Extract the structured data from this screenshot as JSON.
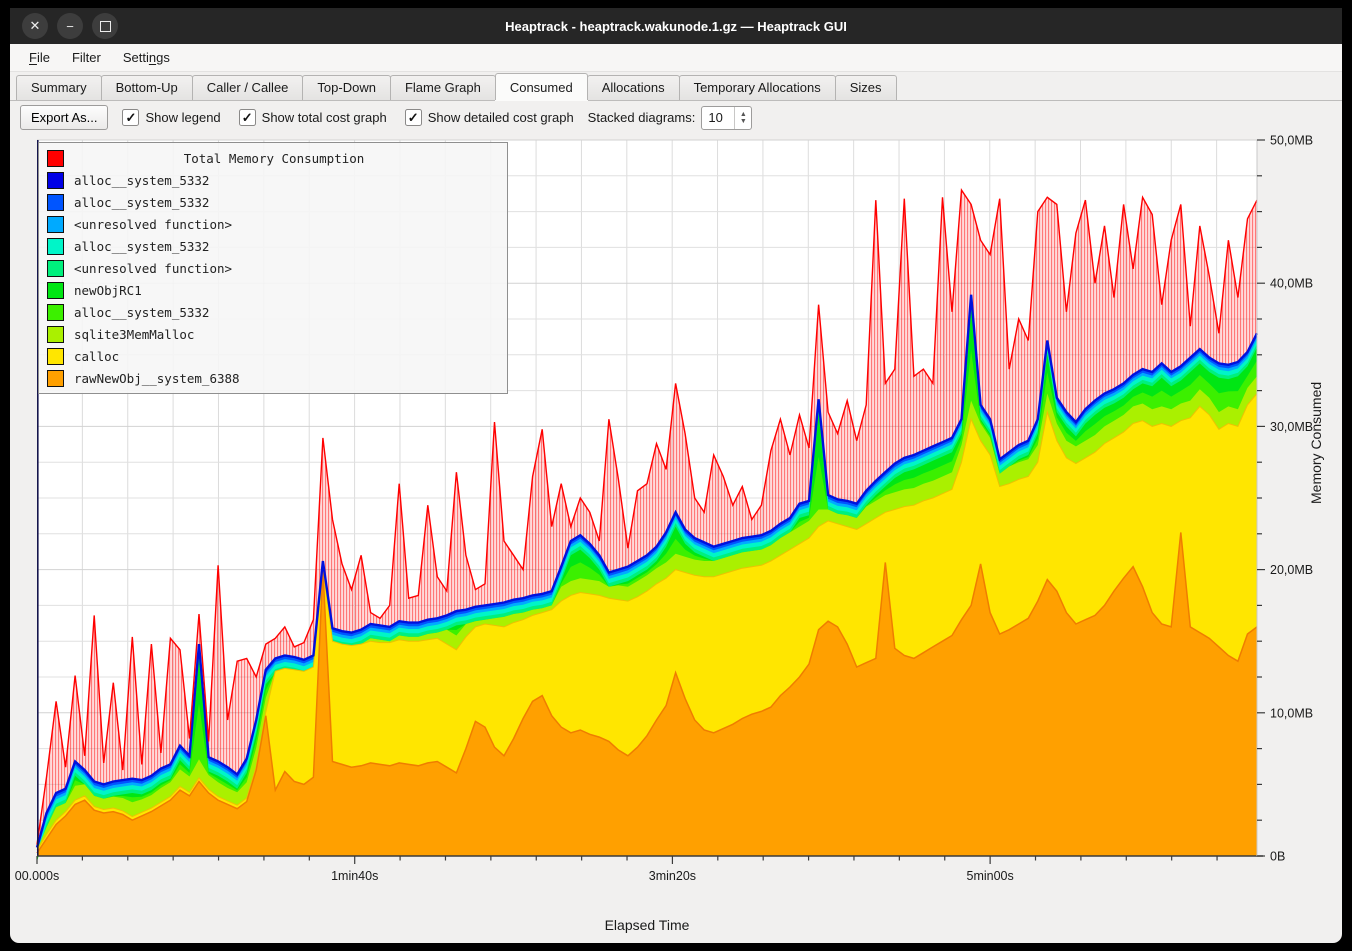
{
  "window": {
    "title": "Heaptrack - heaptrack.wakunode.1.gz — Heaptrack GUI",
    "buttons": {
      "close": "✕",
      "minimize": "−",
      "maximize": ""
    }
  },
  "menu": {
    "items": [
      {
        "pre": "",
        "key": "F",
        "post": "ile"
      },
      {
        "pre": "Filter",
        "key": "",
        "post": ""
      },
      {
        "pre": "Setti",
        "key": "n",
        "post": "gs"
      }
    ]
  },
  "tabs": [
    {
      "label": "Summary",
      "active": false
    },
    {
      "label": "Bottom-Up",
      "active": false
    },
    {
      "label": "Caller / Callee",
      "active": false
    },
    {
      "label": "Top-Down",
      "active": false
    },
    {
      "label": "Flame Graph",
      "active": false
    },
    {
      "label": "Consumed",
      "active": true
    },
    {
      "label": "Allocations",
      "active": false
    },
    {
      "label": "Temporary Allocations",
      "active": false
    },
    {
      "label": "Sizes",
      "active": false
    }
  ],
  "toolbar": {
    "export_label": "Export As...",
    "check_glyph": "✓",
    "checkboxes": [
      {
        "label": "Show legend",
        "checked": true
      },
      {
        "label": "Show total cost graph",
        "checked": true
      },
      {
        "label": "Show detailed cost graph",
        "checked": true
      }
    ],
    "stacked_label": "Stacked diagrams:",
    "stacked_value": "10"
  },
  "legend": {
    "title": "Total Memory Consumption",
    "title_color": "#ff0000",
    "items": [
      {
        "label": "alloc__system_5332",
        "color": "#0000e6"
      },
      {
        "label": "alloc__system_5332",
        "color": "#0055ff"
      },
      {
        "label": "<unresolved function>",
        "color": "#00aaff"
      },
      {
        "label": "alloc__system_5332",
        "color": "#00f5c8"
      },
      {
        "label": "<unresolved function>",
        "color": "#00f07d"
      },
      {
        "label": "newObjRC1",
        "color": "#00e614"
      },
      {
        "label": "alloc__system_5332",
        "color": "#3cf000"
      },
      {
        "label": "sqlite3MemMalloc",
        "color": "#aaf000"
      },
      {
        "label": "calloc",
        "color": "#ffe600"
      },
      {
        "label": "rawNewObj__system_6388",
        "color": "#ffa000"
      }
    ]
  },
  "chart_data": {
    "type": "area",
    "stacked": true,
    "xlabel": "Elapsed Time",
    "ylabel": "Memory Consumed",
    "ylim": [
      0,
      50
    ],
    "t_step_seconds": 3,
    "t_max_seconds": 384,
    "grid": true,
    "x_ticks": [
      {
        "t": 0,
        "label": "00.000s"
      },
      {
        "t": 100,
        "label": "1min40s"
      },
      {
        "t": 200,
        "label": "3min20s"
      },
      {
        "t": 300,
        "label": "5min00s"
      }
    ],
    "y_ticks": [
      {
        "mb": 0,
        "label": "0B"
      },
      {
        "mb": 10,
        "label": "10,0MB"
      },
      {
        "mb": 20,
        "label": "20,0MB"
      },
      {
        "mb": 30,
        "label": "30,0MB"
      },
      {
        "mb": 40,
        "label": "40,0MB"
      },
      {
        "mb": 50,
        "label": "50,0MB"
      }
    ],
    "layer_colors": {
      "total": "#ff0000",
      "blue_top_line": "#0011dd",
      "royal": "#0055ff",
      "sky": "#00aaff",
      "turquoise": "#00f5c8",
      "spring": "#00f07d",
      "green_upper": "#00e614",
      "green_lower": "#3cf000",
      "chartreuse": "#aaf000",
      "yellow": "#ffe600",
      "orange": "#ffa000"
    },
    "thin_band_thickness_mb": {
      "royal": 0.25,
      "sky": 0.2,
      "turquoise": 0.3,
      "spring": 0.25
    },
    "series_arrays": {
      "orange_top": [
        0.2,
        1.2,
        2.2,
        2.8,
        3.6,
        3.9,
        3.2,
        3.0,
        3.1,
        2.9,
        2.5,
        2.8,
        3.1,
        3.5,
        3.9,
        4.6,
        4.2,
        5.2,
        4.4,
        3.9,
        3.6,
        3.3,
        3.8,
        6.0,
        9.8,
        4.6,
        5.9,
        5.2,
        5.0,
        5.5,
        20.0,
        6.6,
        6.4,
        6.2,
        6.3,
        6.5,
        6.4,
        6.3,
        6.5,
        6.4,
        6.3,
        6.5,
        6.6,
        6.2,
        5.8,
        7.5,
        9.4,
        9.0,
        7.6,
        7.0,
        8.2,
        9.6,
        10.8,
        11.2,
        9.8,
        9.0,
        8.6,
        8.8,
        8.5,
        8.3,
        8.0,
        7.4,
        7.0,
        7.6,
        8.4,
        9.5,
        10.5,
        12.8,
        11.0,
        9.5,
        8.8,
        8.6,
        8.9,
        9.2,
        9.6,
        9.9,
        10.1,
        10.4,
        11.2,
        11.8,
        12.5,
        13.4,
        15.8,
        16.4,
        16.0,
        14.8,
        13.2,
        13.5,
        13.8,
        20.5,
        14.5,
        14.0,
        13.8,
        14.2,
        14.6,
        15.0,
        15.4,
        16.5,
        17.5,
        20.4,
        17.0,
        15.5,
        15.8,
        16.2,
        16.6,
        17.8,
        19.3,
        18.5,
        17.0,
        16.2,
        16.5,
        16.8,
        17.5,
        18.5,
        19.4,
        20.2,
        18.8,
        17.0,
        16.2,
        16.0,
        22.6,
        16.0,
        15.6,
        15.2,
        14.6,
        14.0,
        13.6,
        15.5,
        16.0
      ],
      "yellow_top": [
        0.4,
        1.5,
        2.5,
        3.1,
        3.9,
        4.2,
        3.45,
        3.25,
        3.35,
        3.15,
        2.75,
        3.05,
        3.35,
        3.75,
        4.15,
        4.85,
        4.45,
        5.45,
        4.65,
        4.15,
        3.85,
        3.55,
        4.05,
        6.25,
        10.05,
        12.9,
        13.1,
        13.0,
        12.9,
        13.2,
        20.2,
        15.0,
        14.8,
        14.7,
        14.8,
        15.0,
        14.9,
        14.9,
        15.1,
        15.0,
        15.0,
        15.1,
        15.2,
        14.8,
        14.4,
        15.3,
        16.0,
        16.2,
        16.1,
        16.0,
        16.3,
        16.5,
        16.8,
        17.0,
        17.2,
        17.8,
        18.2,
        18.4,
        18.3,
        18.2,
        18.0,
        17.9,
        17.8,
        18.1,
        18.5,
        19.0,
        19.4,
        20.0,
        19.8,
        19.6,
        19.5,
        19.5,
        19.7,
        19.9,
        20.1,
        20.2,
        20.3,
        20.6,
        21.0,
        21.4,
        21.8,
        22.2,
        23.0,
        23.4,
        23.2,
        23.0,
        22.8,
        23.2,
        23.6,
        24.0,
        24.2,
        24.4,
        24.5,
        24.8,
        25.0,
        25.3,
        25.6,
        27.5,
        30.5,
        29.0,
        28.0,
        25.8,
        26.0,
        26.3,
        26.5,
        27.5,
        31.0,
        29.0,
        27.8,
        27.4,
        27.8,
        28.2,
        28.8,
        29.2,
        29.6,
        30.2,
        30.4,
        30.0,
        30.2,
        30.0,
        30.4,
        30.6,
        31.4,
        30.8,
        29.8,
        30.2,
        30.0,
        31.5,
        32.3
      ],
      "chartreuse_thickness": [
        0.1,
        0.8,
        0.9,
        0.9,
        1.0,
        0.9,
        0.8,
        0.8,
        0.8,
        0.9,
        1.0,
        0.9,
        0.9,
        1.0,
        1.0,
        1.2,
        1.1,
        1.3,
        1.0,
        1.0,
        0.9,
        0.9,
        1.1,
        1.3,
        1.0,
        0.8,
        0.8,
        0.8,
        0.8,
        0.8,
        0.2,
        0.9,
        0.9,
        0.9,
        0.9,
        0.9,
        0.9,
        0.9,
        0.9,
        0.9,
        0.9,
        1.0,
        1.0,
        1.0,
        1.0,
        1.0,
        1.0,
        1.0,
        1.0,
        1.0,
        1.0,
        1.0,
        1.0,
        1.0,
        1.0,
        1.0,
        1.0,
        1.0,
        1.0,
        1.0,
        1.0,
        1.0,
        1.0,
        1.1,
        1.1,
        1.1,
        1.1,
        1.1,
        1.1,
        1.1,
        1.1,
        1.1,
        1.1,
        1.1,
        1.1,
        1.1,
        1.1,
        1.2,
        1.2,
        1.2,
        1.2,
        1.2,
        1.2,
        1.2,
        1.2,
        1.2,
        1.2,
        1.2,
        1.2,
        1.2,
        1.2,
        1.2,
        1.2,
        1.2,
        1.2,
        1.2,
        1.2,
        1.2,
        1.3,
        1.2,
        1.2,
        1.2,
        1.2,
        1.2,
        1.2,
        1.2,
        1.3,
        1.2,
        1.2,
        1.2,
        1.2,
        1.2,
        1.2,
        1.2,
        1.2,
        1.2,
        1.2,
        1.2,
        1.2,
        1.2,
        1.2,
        1.2,
        1.2,
        1.2,
        1.2,
        1.2,
        1.2,
        1.2,
        1.2
      ],
      "stack_top": [
        0.6,
        3.0,
        4.4,
        4.7,
        6.6,
        6.0,
        5.2,
        5.0,
        5.2,
        5.3,
        5.4,
        5.3,
        5.6,
        6.1,
        6.4,
        7.7,
        7.0,
        14.8,
        6.9,
        6.6,
        6.2,
        5.7,
        6.8,
        9.5,
        13.0,
        13.8,
        14.0,
        13.9,
        13.7,
        14.0,
        20.6,
        15.9,
        15.7,
        15.6,
        15.8,
        16.2,
        16.1,
        16.0,
        16.4,
        16.3,
        16.3,
        16.5,
        16.6,
        16.8,
        17.1,
        17.2,
        17.4,
        17.5,
        17.6,
        17.7,
        17.9,
        18.0,
        18.2,
        18.3,
        18.5,
        20.2,
        22.0,
        22.4,
        21.8,
        21.0,
        19.8,
        20.0,
        20.2,
        20.6,
        21.0,
        21.6,
        22.6,
        24.0,
        22.8,
        22.2,
        21.9,
        21.6,
        21.8,
        22.0,
        22.2,
        22.3,
        22.4,
        22.7,
        23.2,
        23.6,
        24.6,
        24.8,
        31.9,
        25.2,
        24.9,
        24.8,
        24.6,
        25.5,
        26.2,
        26.8,
        27.4,
        27.8,
        28.0,
        28.3,
        28.6,
        28.9,
        29.2,
        30.5,
        39.2,
        31.5,
        30.5,
        27.7,
        28.2,
        28.7,
        29.0,
        30.5,
        36.0,
        32.0,
        31.0,
        30.3,
        31.2,
        31.8,
        32.3,
        32.6,
        33.0,
        33.6,
        34.0,
        33.8,
        34.4,
        33.8,
        34.2,
        34.8,
        35.4,
        34.8,
        34.4,
        34.3,
        34.5,
        35.2,
        36.5
      ],
      "total_red": [
        0.8,
        5.5,
        10.8,
        6.2,
        12.6,
        7.0,
        16.8,
        6.5,
        12.1,
        6.0,
        15.3,
        6.4,
        14.8,
        7.2,
        15.2,
        14.4,
        8.2,
        16.9,
        8.0,
        20.3,
        9.5,
        13.6,
        13.8,
        12.5,
        14.8,
        15.2,
        16.0,
        14.6,
        14.9,
        16.5,
        29.2,
        23.5,
        20.4,
        18.6,
        21.0,
        17.0,
        16.6,
        17.5,
        26.0,
        18.0,
        18.2,
        24.5,
        19.5,
        18.5,
        26.8,
        21.0,
        18.6,
        19.0,
        30.3,
        22.0,
        21.0,
        20.0,
        26.5,
        29.8,
        23.0,
        26.0,
        23.0,
        25.0,
        24.0,
        22.0,
        30.5,
        26.3,
        21.5,
        25.5,
        26.0,
        28.8,
        27.0,
        33.0,
        29.5,
        25.0,
        24.0,
        28.0,
        26.5,
        24.5,
        25.8,
        23.5,
        24.5,
        28.3,
        30.5,
        28.0,
        30.8,
        28.5,
        38.5,
        31.0,
        29.5,
        31.8,
        29.0,
        31.5,
        45.8,
        33.0,
        34.0,
        45.9,
        33.5,
        34.0,
        33.0,
        46.0,
        38.0,
        46.5,
        45.5,
        43.0,
        42.0,
        45.9,
        34.0,
        37.5,
        36.0,
        45.0,
        46.0,
        45.5,
        38.0,
        43.5,
        45.8,
        40.0,
        44.0,
        39.0,
        45.5,
        41.0,
        46.0,
        44.8,
        38.5,
        43.0,
        45.5,
        37.0,
        44.0,
        40.5,
        36.5,
        43.0,
        39.0,
        44.5,
        45.8
      ]
    }
  }
}
